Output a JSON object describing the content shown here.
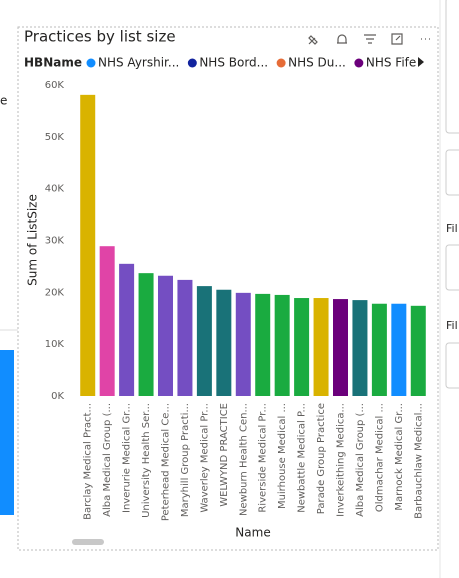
{
  "chart_data": {
    "type": "bar",
    "title": "Practices by list size",
    "legend": {
      "title": "HBName",
      "items": [
        {
          "name": "NHS Ayrshir...",
          "color": "#118dff"
        },
        {
          "name": "NHS Bord...",
          "color": "#12239e"
        },
        {
          "name": "NHS Du...",
          "color": "#e66c37"
        },
        {
          "name": "NHS Fife",
          "color": "#6b007b"
        }
      ]
    },
    "x_label": "Name",
    "y_label": "Sum of ListSize",
    "categories": [
      "Barclay Medical Pract...",
      "Alba Medical Group (...",
      "Inverurie Medical Gr...",
      "University Health Ser...",
      "Peterhead Medical Ce...",
      "Maryhill Group Practi...",
      "Waverley Medical Pr...",
      "WELWYND PRACTICE",
      "Newburn Health Cen...",
      "Riverside Medical Pr...",
      "Muirhouse Medical ...",
      "Newbattle Medical P...",
      "Parade Group Practice",
      "Inverkeithing Medica...",
      "Alba Medical Group (...",
      "Oldmachar Medical ...",
      "Marnock Medical Gr...",
      "Barbauchlaw Medical..."
    ],
    "values": [
      58100,
      28900,
      25500,
      23700,
      23200,
      22400,
      21200,
      20500,
      19900,
      19700,
      19500,
      18900,
      18900,
      18700,
      18500,
      17800,
      17800,
      17400
    ],
    "colors": [
      "#d9b300",
      "#e044a7",
      "#744ec2",
      "#1aab40",
      "#744ec2",
      "#744ec2",
      "#197278",
      "#197278",
      "#744ec2",
      "#1aab40",
      "#1aab40",
      "#1aab40",
      "#d9b300",
      "#6b007b",
      "#197278",
      "#1aab40",
      "#118dff",
      "#1aab40"
    ],
    "ylim": [
      0,
      60000
    ],
    "yticks": [
      {
        "value": 0,
        "label": "0K"
      },
      {
        "value": 10000,
        "label": "10K"
      },
      {
        "value": 20000,
        "label": "20K"
      },
      {
        "value": 30000,
        "label": "30K"
      },
      {
        "value": 40000,
        "label": "40K"
      },
      {
        "value": 50000,
        "label": "50K"
      },
      {
        "value": 60000,
        "label": "60K"
      }
    ],
    "grid": false
  },
  "background": {
    "texts": [
      "e",
      "Fil",
      "Fil"
    ]
  }
}
